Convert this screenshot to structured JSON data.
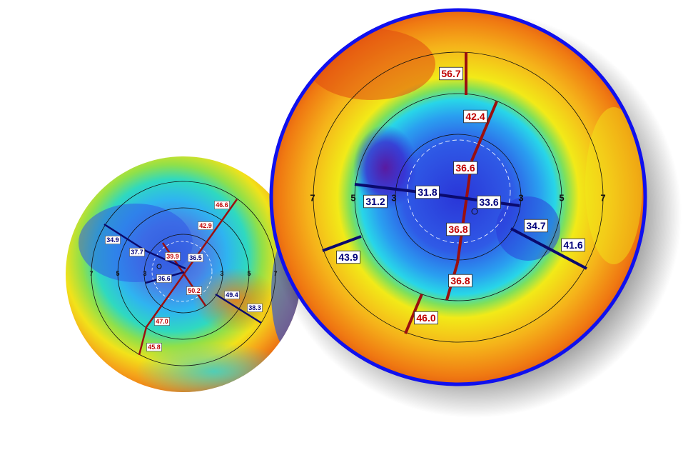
{
  "maps": [
    {
      "id": "small-map",
      "ring_labels_left": [
        "7",
        "5",
        "3"
      ],
      "ring_labels_right": [
        "3",
        "5",
        "7"
      ],
      "readings": [
        {
          "text": "46.6",
          "color": "red"
        },
        {
          "text": "42.9",
          "color": "red"
        },
        {
          "text": "39.9",
          "color": "red"
        },
        {
          "text": "50.2",
          "color": "red"
        },
        {
          "text": "47.0",
          "color": "red"
        },
        {
          "text": "45.8",
          "color": "red"
        },
        {
          "text": "34.9",
          "color": "blue"
        },
        {
          "text": "37.7",
          "color": "blue"
        },
        {
          "text": "36.5",
          "color": "blue"
        },
        {
          "text": "36.6",
          "color": "blue"
        },
        {
          "text": "49.4",
          "color": "blue"
        },
        {
          "text": "38.3",
          "color": "blue"
        }
      ]
    },
    {
      "id": "large-map",
      "ring_labels_left": [
        "7",
        "5",
        "3"
      ],
      "ring_labels_right": [
        "3",
        "5",
        "7"
      ],
      "readings": [
        {
          "text": "56.7",
          "color": "red"
        },
        {
          "text": "42.4",
          "color": "red"
        },
        {
          "text": "36.6",
          "color": "red"
        },
        {
          "text": "36.8",
          "color": "red"
        },
        {
          "text": "36.8",
          "color": "red"
        },
        {
          "text": "46.0",
          "color": "red"
        },
        {
          "text": "31.2",
          "color": "blue"
        },
        {
          "text": "31.8",
          "color": "blue"
        },
        {
          "text": "33.6",
          "color": "blue"
        },
        {
          "text": "34.7",
          "color": "blue"
        },
        {
          "text": "41.6",
          "color": "blue"
        },
        {
          "text": "43.9",
          "color": "blue"
        }
      ]
    }
  ],
  "colors": {
    "red_label": "#c00000",
    "blue_label": "#00007a",
    "red_line": "#9a0f0f",
    "blue_line": "#0a0a6e",
    "border": "#1010ee"
  }
}
